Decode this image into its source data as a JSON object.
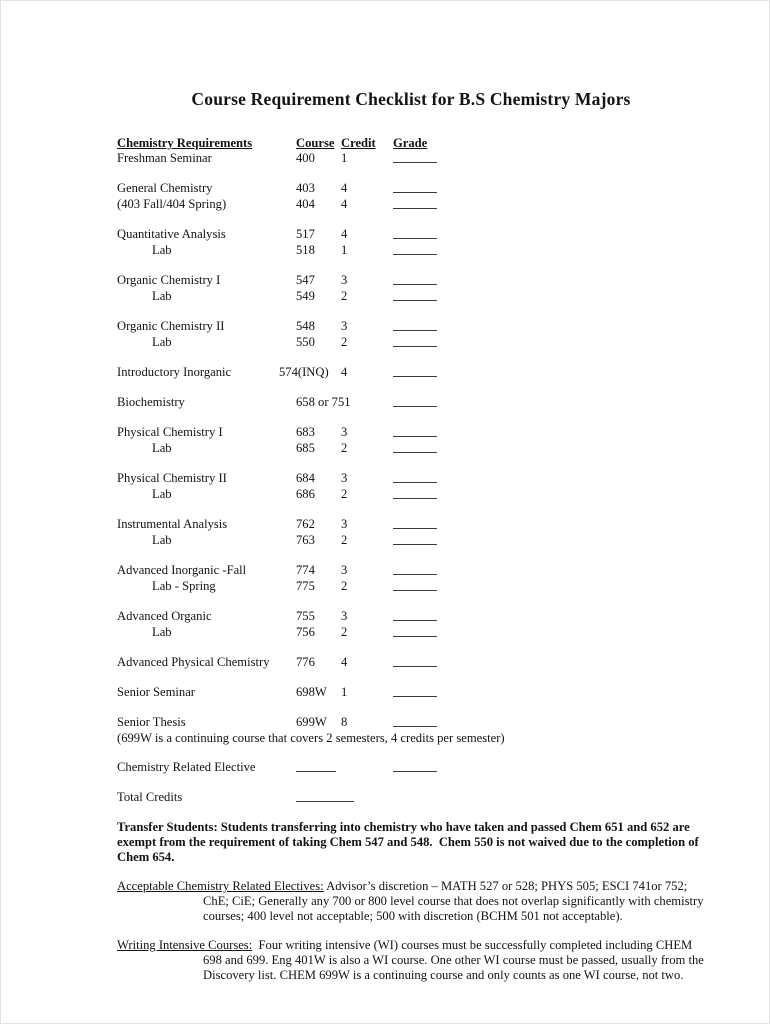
{
  "doc": {
    "title": "Course Requirement Checklist for B.S Chemistry Majors"
  },
  "table": {
    "headers": {
      "requirements": "Chemistry Requirements",
      "course": "Course",
      "credit": "Credit",
      "grade": "Grade"
    },
    "rows": [
      {
        "label": "Freshman Seminar",
        "course": "400",
        "credit": "1"
      },
      {
        "label": "General Chemistry",
        "course": "403",
        "credit": "4"
      },
      {
        "label": "(403 Fall/404 Spring)",
        "course": "404",
        "credit": "4"
      },
      {
        "label": "Quantitative Analysis",
        "course": "517",
        "credit": "4"
      },
      {
        "label": "Lab",
        "course": "518",
        "credit": "1"
      },
      {
        "label": "Organic Chemistry I",
        "course": "547",
        "credit": "3"
      },
      {
        "label": "Lab",
        "course": "549",
        "credit": "2"
      },
      {
        "label": "Organic Chemistry II",
        "course": "548",
        "credit": "3"
      },
      {
        "label": "Lab",
        "course": "550",
        "credit": "2"
      },
      {
        "label": "Introductory Inorganic",
        "course": "574(INQ)",
        "credit": "4"
      },
      {
        "label": "Biochemistry",
        "course": "658 or 751",
        "credit": ""
      },
      {
        "label": "Physical Chemistry I",
        "course": "683",
        "credit": "3"
      },
      {
        "label": "Lab",
        "course": "685",
        "credit": "2"
      },
      {
        "label": "Physical Chemistry II",
        "course": "684",
        "credit": "3"
      },
      {
        "label": "Lab",
        "course": "686",
        "credit": "2"
      },
      {
        "label": "Instrumental Analysis",
        "course": "762",
        "credit": "3"
      },
      {
        "label": "Lab",
        "course": "763",
        "credit": "2"
      },
      {
        "label": "Advanced Inorganic -Fall",
        "course": "774",
        "credit": "3"
      },
      {
        "label": "Lab - Spring",
        "course": "775",
        "credit": "2"
      },
      {
        "label": "Advanced Organic",
        "course": "755",
        "credit": "3"
      },
      {
        "label": "Lab",
        "course": "756",
        "credit": "2"
      },
      {
        "label": "Advanced Physical Chemistry",
        "course": "776",
        "credit": "4"
      },
      {
        "label": "Senior Seminar",
        "course": "698W",
        "credit": "1"
      },
      {
        "label": "Senior Thesis",
        "course": "699W",
        "credit": "8"
      },
      {
        "label": "Chemistry Related Elective",
        "course": "",
        "credit": ""
      },
      {
        "label": "Total Credits",
        "course": "",
        "credit": ""
      }
    ]
  },
  "notes": {
    "senior_thesis_note": "(699W is a continuing course that covers 2 semesters, 4 credits per semester)",
    "transfer": "Transfer Students: Students transferring into chemistry who have taken and passed Chem 651 and 652 are exempt from the requirement of taking Chem 547 and 548.  Chem 550 is not waived due to the completion of Chem 654.",
    "electives_heading": "Acceptable Chemistry Related Electives:",
    "electives_text": " Advisor’s discretion – MATH 527 or 528; PHYS 505; ESCI 741or 752; ChE; CiE; Generally any 700 or 800 level course that does not overlap significantly with chemistry courses; 400 level not acceptable; 500 with discretion (BCHM 501 not acceptable).",
    "wi_heading": "Writing Intensive Courses:",
    "wi_text": "  Four writing intensive (WI) courses must be successfully completed including CHEM 698 and 699. Eng 401W is also a WI course. One other WI course must be passed, usually from the Discovery list. CHEM 699W is a continuing course and only counts as one WI course, not two."
  }
}
